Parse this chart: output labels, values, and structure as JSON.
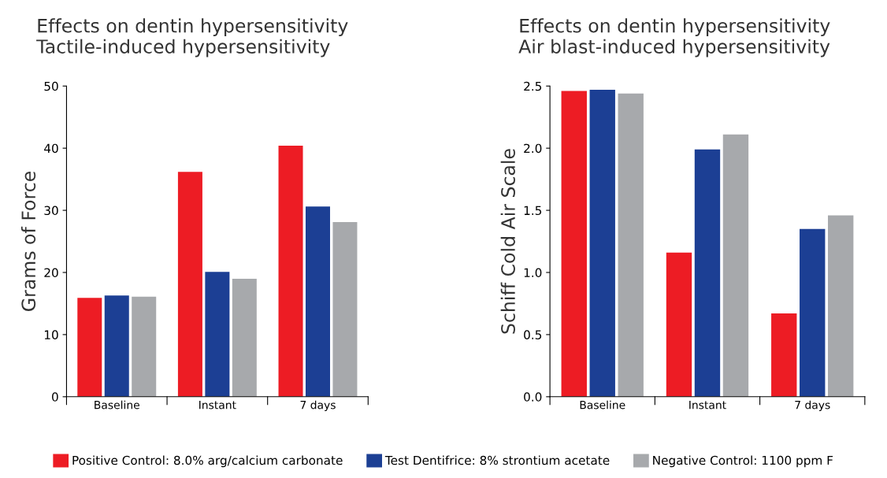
{
  "chart_data": [
    {
      "type": "bar",
      "title": "Effects on dentin hypersensitivity\nTactile-induced hypersensitivity",
      "ylabel": "Grams of Force",
      "categories": [
        "Baseline",
        "Instant",
        "7 days"
      ],
      "series": [
        {
          "name": "Positive Control: 8.0% arg/calcium carbonate",
          "color": "#ed1c24",
          "values": [
            15.9,
            36.2,
            40.4
          ]
        },
        {
          "name": "Test Dentifrice: 8% strontium acetate",
          "color": "#1c3f94",
          "values": [
            16.3,
            20.1,
            30.6
          ]
        },
        {
          "name": "Negative Control: 1100 ppm F",
          "color": "#a7a9ac",
          "values": [
            16.1,
            19.0,
            28.1
          ]
        }
      ],
      "ylim": [
        0,
        50
      ],
      "yticks": [
        0,
        10,
        20,
        30,
        40,
        50
      ],
      "grid": false,
      "legend": "bottom"
    },
    {
      "type": "bar",
      "title": "Effects on dentin hypersensitivity\nAir blast-induced hypersensitivity",
      "ylabel": "Schiff Cold Air Scale",
      "categories": [
        "Baseline",
        "Instant",
        "7 days"
      ],
      "series": [
        {
          "color": "#ed1c24",
          "values": [
            2.46,
            1.16,
            0.67
          ]
        },
        {
          "color": "#1c3f94",
          "values": [
            2.47,
            1.99,
            1.35
          ]
        },
        {
          "color": "#a7a9ac",
          "values": [
            2.44,
            2.11,
            1.46
          ]
        }
      ],
      "ylim": [
        0,
        2.5
      ],
      "yticks": [
        {
          "value": 0,
          "label": "0.0"
        },
        {
          "value": 0.5,
          "label": "0.5"
        },
        {
          "value": 1,
          "label": "1.0"
        },
        {
          "value": 1.5,
          "label": "1.5"
        },
        {
          "value": 2,
          "label": "2.0"
        },
        {
          "value": 2.5,
          "label": "2.5"
        }
      ],
      "grid": false
    }
  ]
}
